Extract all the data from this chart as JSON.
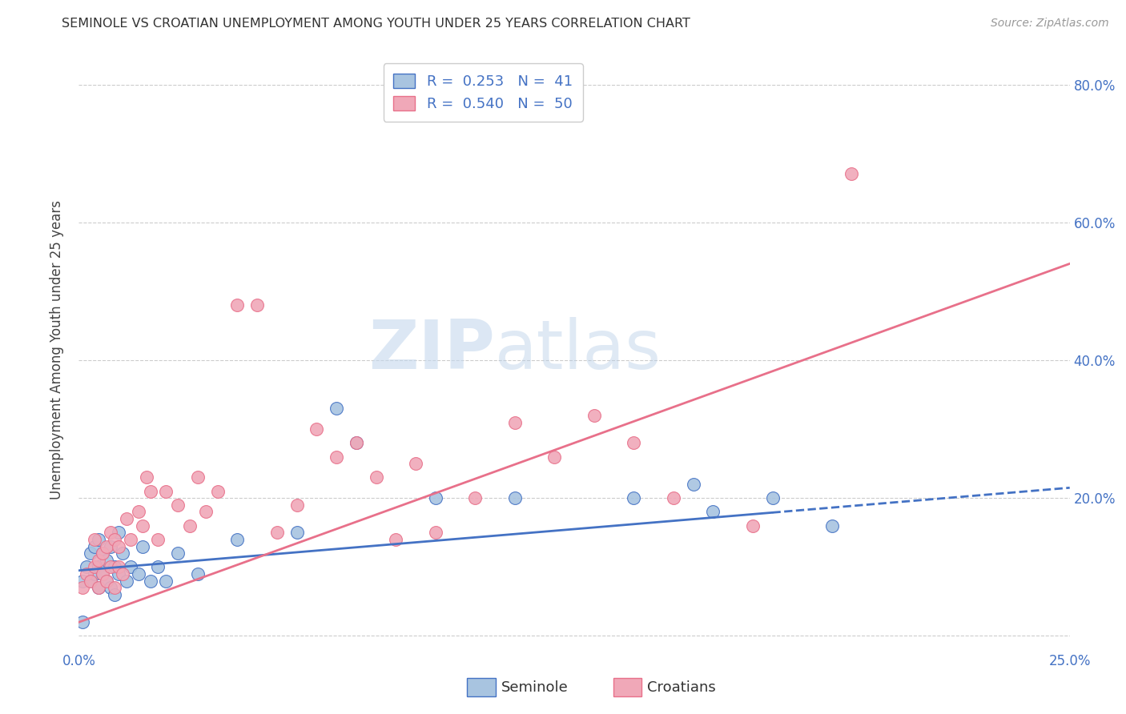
{
  "title": "SEMINOLE VS CROATIAN UNEMPLOYMENT AMONG YOUTH UNDER 25 YEARS CORRELATION CHART",
  "source": "Source: ZipAtlas.com",
  "ylabel": "Unemployment Among Youth under 25 years",
  "xlim": [
    0.0,
    0.25
  ],
  "ylim": [
    -0.02,
    0.85
  ],
  "seminole_R": "0.253",
  "seminole_N": "41",
  "croatian_R": "0.540",
  "croatian_N": "50",
  "seminole_color": "#a8c4e0",
  "croatian_color": "#f0a8b8",
  "seminole_line_color": "#4472c4",
  "croatian_line_color": "#e8708a",
  "watermark_zip": "ZIP",
  "watermark_atlas": "atlas",
  "seminole_scatter_x": [
    0.001,
    0.002,
    0.003,
    0.003,
    0.004,
    0.004,
    0.005,
    0.005,
    0.005,
    0.006,
    0.006,
    0.007,
    0.007,
    0.008,
    0.008,
    0.009,
    0.009,
    0.01,
    0.01,
    0.011,
    0.012,
    0.013,
    0.015,
    0.016,
    0.018,
    0.02,
    0.022,
    0.025,
    0.03,
    0.04,
    0.055,
    0.065,
    0.07,
    0.09,
    0.11,
    0.14,
    0.155,
    0.16,
    0.175,
    0.19,
    0.001
  ],
  "seminole_scatter_y": [
    0.08,
    0.1,
    0.12,
    0.08,
    0.09,
    0.13,
    0.1,
    0.07,
    0.14,
    0.09,
    0.12,
    0.11,
    0.08,
    0.13,
    0.07,
    0.1,
    0.06,
    0.09,
    0.15,
    0.12,
    0.08,
    0.1,
    0.09,
    0.13,
    0.08,
    0.1,
    0.08,
    0.12,
    0.09,
    0.14,
    0.15,
    0.33,
    0.28,
    0.2,
    0.2,
    0.2,
    0.22,
    0.18,
    0.2,
    0.16,
    0.02
  ],
  "croatian_scatter_x": [
    0.001,
    0.002,
    0.003,
    0.004,
    0.004,
    0.005,
    0.005,
    0.006,
    0.006,
    0.007,
    0.007,
    0.008,
    0.008,
    0.009,
    0.009,
    0.01,
    0.01,
    0.011,
    0.012,
    0.013,
    0.015,
    0.016,
    0.017,
    0.018,
    0.02,
    0.022,
    0.025,
    0.028,
    0.03,
    0.032,
    0.035,
    0.04,
    0.045,
    0.05,
    0.055,
    0.06,
    0.065,
    0.07,
    0.075,
    0.08,
    0.085,
    0.09,
    0.1,
    0.11,
    0.12,
    0.13,
    0.14,
    0.15,
    0.17,
    0.195
  ],
  "croatian_scatter_y": [
    0.07,
    0.09,
    0.08,
    0.1,
    0.14,
    0.11,
    0.07,
    0.12,
    0.09,
    0.13,
    0.08,
    0.15,
    0.1,
    0.14,
    0.07,
    0.13,
    0.1,
    0.09,
    0.17,
    0.14,
    0.18,
    0.16,
    0.23,
    0.21,
    0.14,
    0.21,
    0.19,
    0.16,
    0.23,
    0.18,
    0.21,
    0.48,
    0.48,
    0.15,
    0.19,
    0.3,
    0.26,
    0.28,
    0.23,
    0.14,
    0.25,
    0.15,
    0.2,
    0.31,
    0.26,
    0.32,
    0.28,
    0.2,
    0.16,
    0.67
  ],
  "sem_line_x0": 0.0,
  "sem_line_x1": 0.25,
  "sem_line_y0": 0.095,
  "sem_line_y1": 0.215,
  "cro_line_x0": 0.0,
  "cro_line_x1": 0.25,
  "cro_line_y0": 0.02,
  "cro_line_y1": 0.54,
  "solid_cutoff": 0.175
}
